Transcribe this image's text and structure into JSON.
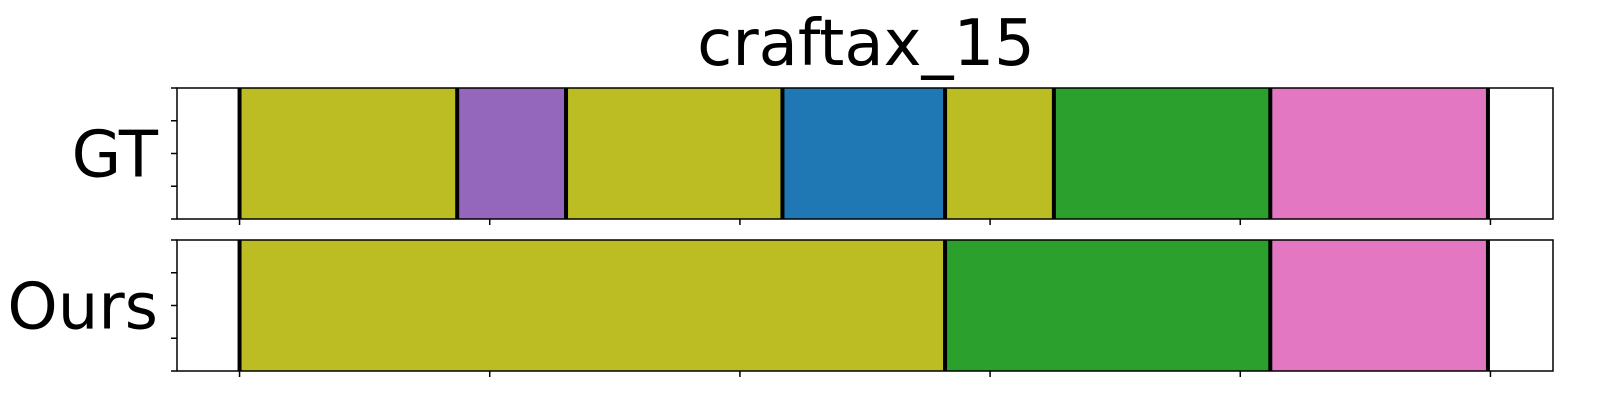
{
  "chart_data": {
    "type": "segmentation_timeline",
    "title": "craftax_15",
    "xlim": [
      0,
      110
    ],
    "x_ticks": [
      5,
      25,
      45,
      65,
      85,
      105
    ],
    "rows": [
      {
        "label": "GT",
        "segments": [
          {
            "start": 5,
            "end": 22.4,
            "color": "#bcbd22"
          },
          {
            "start": 22.4,
            "end": 31.1,
            "color": "#9467bd"
          },
          {
            "start": 31.1,
            "end": 48.4,
            "color": "#bcbd22"
          },
          {
            "start": 48.4,
            "end": 61.4,
            "color": "#1f77b4"
          },
          {
            "start": 61.4,
            "end": 70.1,
            "color": "#bcbd22"
          },
          {
            "start": 70.1,
            "end": 87.4,
            "color": "#2ca02c"
          },
          {
            "start": 87.4,
            "end": 104.8,
            "color": "#e377c2"
          }
        ],
        "boundaries": [
          5,
          22.4,
          31.1,
          48.4,
          61.4,
          70.1,
          87.4,
          104.8
        ]
      },
      {
        "label": "Ours",
        "segments": [
          {
            "start": 5,
            "end": 61.4,
            "color": "#bcbd22"
          },
          {
            "start": 61.4,
            "end": 87.4,
            "color": "#2ca02c"
          },
          {
            "start": 87.4,
            "end": 104.8,
            "color": "#e377c2"
          }
        ],
        "boundaries": [
          5,
          61.4,
          87.4,
          104.8
        ]
      }
    ]
  }
}
